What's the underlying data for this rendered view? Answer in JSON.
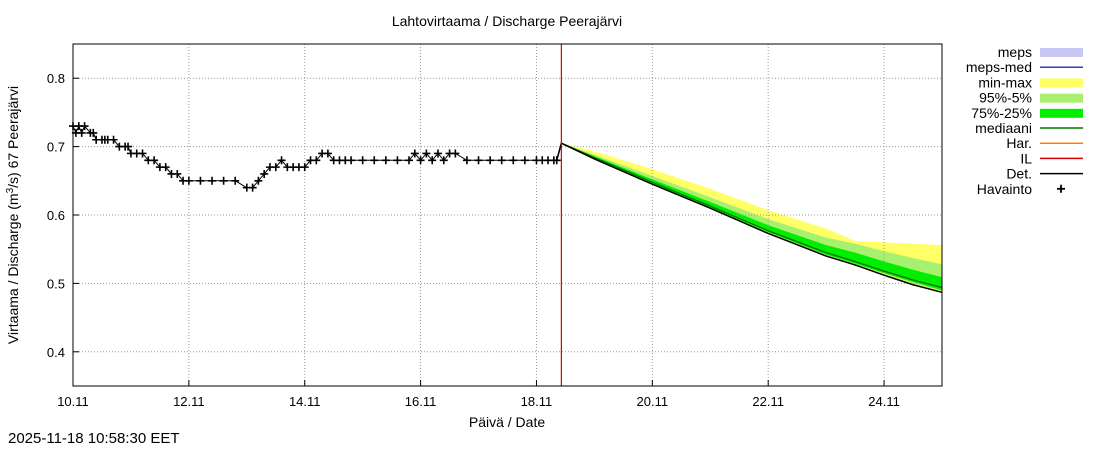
{
  "chart_data": {
    "type": "line",
    "title": "Lahtovirtaama / Discharge  Peerajärvi",
    "xlabel": "Päivä / Date",
    "ylabel_main": "Virtaama / Discharge (m",
    "ylabel_sup": "3",
    "ylabel_tail": "/s)  67  Peerajärvi",
    "x_unit": "days since 10.11",
    "xlim": [
      0,
      15.0
    ],
    "ylim": [
      0.35,
      0.85
    ],
    "x_ticks": [
      {
        "x": 0,
        "label": "10.11"
      },
      {
        "x": 2,
        "label": "12.11"
      },
      {
        "x": 4,
        "label": "14.11"
      },
      {
        "x": 6,
        "label": "16.11"
      },
      {
        "x": 8,
        "label": "18.11"
      },
      {
        "x": 10,
        "label": "20.11"
      },
      {
        "x": 12,
        "label": "22.11"
      },
      {
        "x": 14,
        "label": "24.11"
      }
    ],
    "y_ticks": [
      {
        "y": 0.4,
        "label": "0.4"
      },
      {
        "y": 0.5,
        "label": "0.5"
      },
      {
        "y": 0.6,
        "label": "0.6"
      },
      {
        "y": 0.7,
        "label": "0.7"
      },
      {
        "y": 0.8,
        "label": "0.8"
      }
    ],
    "grid": true,
    "forecast_start_x": 8.43,
    "legend": [
      {
        "label": "meps",
        "color": "#c8c8f5",
        "style": "band"
      },
      {
        "label": "meps-med",
        "color": "#3a3ab0",
        "style": "line"
      },
      {
        "label": "min-max",
        "color": "#ffff66",
        "style": "band"
      },
      {
        "label": "95%-5%",
        "color": "#a8f070",
        "style": "band"
      },
      {
        "label": "75%-25%",
        "color": "#00ee00",
        "style": "band"
      },
      {
        "label": "mediaani",
        "color": "#007700",
        "style": "line"
      },
      {
        "label": "Har.",
        "color": "#ff8000",
        "style": "line"
      },
      {
        "label": "IL",
        "color": "#dd0000",
        "style": "line"
      },
      {
        "label": "Det.",
        "color": "#000000",
        "style": "line"
      },
      {
        "label": "Havainto",
        "color": "#000000",
        "style": "marker"
      }
    ],
    "observed": {
      "x": [
        0,
        0.05,
        0.1,
        0.15,
        0.2,
        0.3,
        0.35,
        0.4,
        0.5,
        0.55,
        0.6,
        0.7,
        0.8,
        0.9,
        0.95,
        1.0,
        1.1,
        1.2,
        1.3,
        1.4,
        1.5,
        1.6,
        1.7,
        1.8,
        1.9,
        2.0,
        2.2,
        2.4,
        2.6,
        2.8,
        3.0,
        3.1,
        3.2,
        3.3,
        3.4,
        3.5,
        3.6,
        3.7,
        3.8,
        3.9,
        4.0,
        4.1,
        4.2,
        4.3,
        4.4,
        4.5,
        4.6,
        4.7,
        4.8,
        5.0,
        5.2,
        5.4,
        5.6,
        5.8,
        5.9,
        6.0,
        6.1,
        6.2,
        6.3,
        6.4,
        6.5,
        6.6,
        6.8,
        7.0,
        7.2,
        7.4,
        7.6,
        7.8,
        8.0,
        8.1,
        8.2,
        8.3,
        8.35
      ],
      "y": [
        0.73,
        0.72,
        0.73,
        0.72,
        0.73,
        0.72,
        0.72,
        0.71,
        0.71,
        0.71,
        0.71,
        0.71,
        0.7,
        0.7,
        0.7,
        0.69,
        0.69,
        0.69,
        0.68,
        0.68,
        0.67,
        0.67,
        0.66,
        0.66,
        0.65,
        0.65,
        0.65,
        0.65,
        0.65,
        0.65,
        0.64,
        0.64,
        0.65,
        0.66,
        0.67,
        0.67,
        0.68,
        0.67,
        0.67,
        0.67,
        0.67,
        0.68,
        0.68,
        0.69,
        0.69,
        0.68,
        0.68,
        0.68,
        0.68,
        0.68,
        0.68,
        0.68,
        0.68,
        0.68,
        0.69,
        0.68,
        0.69,
        0.68,
        0.69,
        0.68,
        0.69,
        0.69,
        0.68,
        0.68,
        0.68,
        0.68,
        0.68,
        0.68,
        0.68,
        0.68,
        0.68,
        0.68,
        0.68
      ]
    },
    "forecast": {
      "x": [
        8.35,
        8.43,
        9,
        10,
        11,
        12,
        13,
        13.5,
        14,
        14.5,
        15
      ],
      "det": [
        0.68,
        0.705,
        0.682,
        0.645,
        0.61,
        0.573,
        0.54,
        0.527,
        0.512,
        0.498,
        0.487
      ],
      "median": [
        0.68,
        0.705,
        0.684,
        0.648,
        0.613,
        0.577,
        0.545,
        0.532,
        0.518,
        0.505,
        0.494
      ],
      "p25": [
        0.68,
        0.705,
        0.683,
        0.646,
        0.611,
        0.575,
        0.542,
        0.529,
        0.515,
        0.502,
        0.49
      ],
      "p75": [
        0.68,
        0.705,
        0.686,
        0.652,
        0.619,
        0.585,
        0.556,
        0.545,
        0.532,
        0.52,
        0.509
      ],
      "p5": [
        0.68,
        0.705,
        0.682,
        0.645,
        0.61,
        0.574,
        0.541,
        0.528,
        0.514,
        0.5,
        0.489
      ],
      "p95": [
        0.68,
        0.705,
        0.688,
        0.657,
        0.626,
        0.594,
        0.567,
        0.558,
        0.547,
        0.537,
        0.528
      ],
      "min": [
        0.68,
        0.705,
        0.682,
        0.645,
        0.61,
        0.573,
        0.54,
        0.527,
        0.512,
        0.498,
        0.487
      ],
      "max": [
        0.68,
        0.705,
        0.693,
        0.667,
        0.638,
        0.607,
        0.58,
        0.562,
        0.56,
        0.558,
        0.556
      ]
    }
  },
  "footer": {
    "timestamp": "2025-11-18 10:58:30 EET"
  }
}
